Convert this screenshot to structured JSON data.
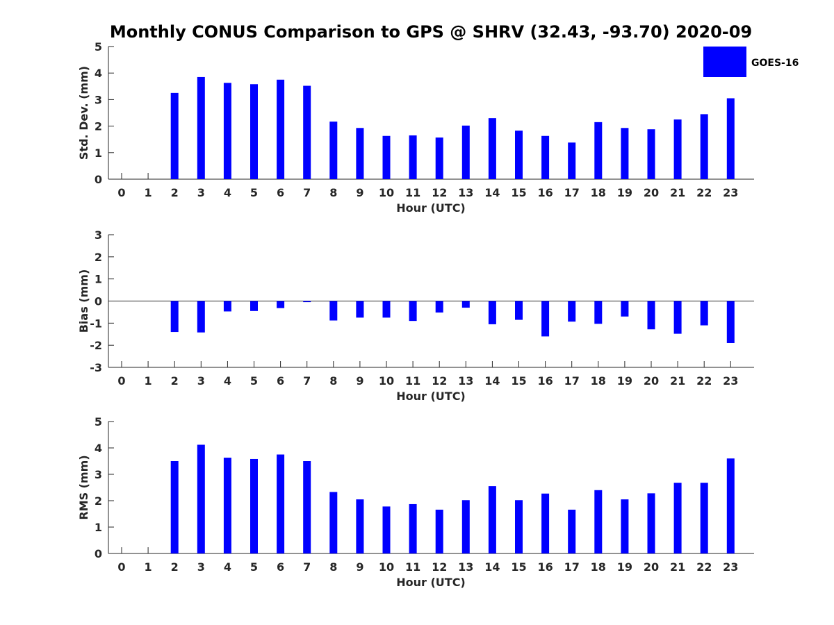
{
  "title": "Monthly CONUS Comparison to GPS @ SHRV (32.43, -93.70) 2020-09",
  "legend": {
    "label": "GOES-16",
    "placement": "top-right",
    "color": "#0000FF"
  },
  "colors": {
    "bar": "#0000FF",
    "axis": "#262626",
    "background": "#FFFFFF"
  },
  "chart_data": [
    {
      "type": "bar",
      "xlabel": "Hour (UTC)",
      "ylabel": "Std. Dev. (mm)",
      "ylim": [
        0,
        5
      ],
      "yticks": [
        0,
        1,
        2,
        3,
        4,
        5
      ],
      "grid": false,
      "categories": [
        "0",
        "1",
        "2",
        "3",
        "4",
        "5",
        "6",
        "7",
        "8",
        "9",
        "10",
        "11",
        "12",
        "13",
        "14",
        "15",
        "16",
        "17",
        "18",
        "19",
        "20",
        "21",
        "22",
        "23"
      ],
      "series": [
        {
          "name": "GOES-16",
          "values": [
            null,
            null,
            3.25,
            3.85,
            3.63,
            3.58,
            3.75,
            3.52,
            2.17,
            1.93,
            1.63,
            1.65,
            1.57,
            2.02,
            2.3,
            1.83,
            1.63,
            1.38,
            2.15,
            1.93,
            1.88,
            2.25,
            2.45,
            3.05
          ]
        }
      ]
    },
    {
      "type": "bar",
      "xlabel": "Hour (UTC)",
      "ylabel": "Bias (mm)",
      "ylim": [
        -3,
        3
      ],
      "yticks": [
        -3,
        -2,
        -1,
        0,
        1,
        2,
        3
      ],
      "grid": false,
      "categories": [
        "0",
        "1",
        "2",
        "3",
        "4",
        "5",
        "6",
        "7",
        "8",
        "9",
        "10",
        "11",
        "12",
        "13",
        "14",
        "15",
        "16",
        "17",
        "18",
        "19",
        "20",
        "21",
        "22",
        "23"
      ],
      "series": [
        {
          "name": "GOES-16",
          "values": [
            null,
            null,
            -1.4,
            -1.42,
            -0.47,
            -0.45,
            -0.32,
            -0.05,
            -0.88,
            -0.75,
            -0.75,
            -0.9,
            -0.52,
            -0.3,
            -1.05,
            -0.85,
            -1.6,
            -0.93,
            -1.03,
            -0.7,
            -1.28,
            -1.48,
            -1.1,
            -1.9
          ]
        }
      ]
    },
    {
      "type": "bar",
      "xlabel": "Hour (UTC)",
      "ylabel": "RMS (mm)",
      "ylim": [
        0,
        5
      ],
      "yticks": [
        0,
        1,
        2,
        3,
        4,
        5
      ],
      "grid": false,
      "categories": [
        "0",
        "1",
        "2",
        "3",
        "4",
        "5",
        "6",
        "7",
        "8",
        "9",
        "10",
        "11",
        "12",
        "13",
        "14",
        "15",
        "16",
        "17",
        "18",
        "19",
        "20",
        "21",
        "22",
        "23"
      ],
      "series": [
        {
          "name": "GOES-16",
          "values": [
            null,
            null,
            3.5,
            4.12,
            3.63,
            3.58,
            3.75,
            3.5,
            2.33,
            2.05,
            1.78,
            1.87,
            1.66,
            2.02,
            2.55,
            2.02,
            2.27,
            1.66,
            2.4,
            2.05,
            2.28,
            2.68,
            2.68,
            3.6
          ]
        }
      ]
    }
  ]
}
